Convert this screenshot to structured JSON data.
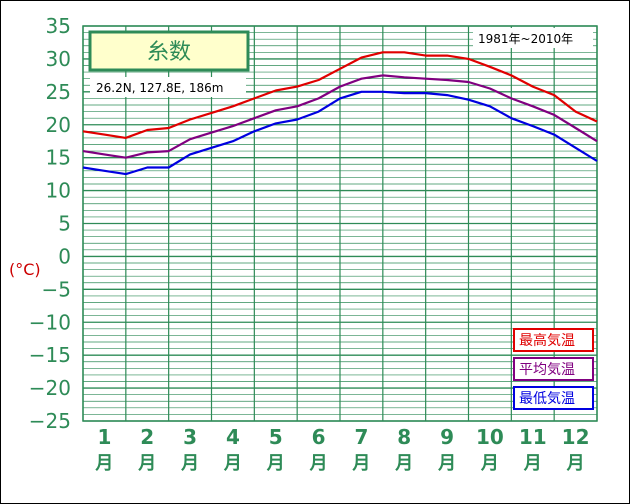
{
  "chart_data": {
    "type": "line",
    "title": "糸数",
    "location": "26.2N, 127.8E, 186m",
    "period": "1981年~2010年",
    "ylabel": "(°C)",
    "ylim": [
      -25,
      35
    ],
    "yticks": [
      35,
      30,
      25,
      20,
      15,
      10,
      5,
      0,
      -5,
      -10,
      -15,
      -20,
      -25
    ],
    "xlim": [
      0,
      12
    ],
    "month_numbers": [
      "1",
      "2",
      "3",
      "4",
      "5",
      "6",
      "7",
      "8",
      "9",
      "10",
      "11",
      "12"
    ],
    "month_suffix": "月",
    "grid": true,
    "legend_position": "bottom-right",
    "x": [
      0.0,
      0.5,
      1.0,
      1.5,
      2.0,
      2.5,
      3.0,
      3.5,
      4.0,
      4.5,
      5.0,
      5.5,
      6.0,
      6.5,
      7.0,
      7.5,
      8.0,
      8.5,
      9.0,
      9.5,
      10.0,
      10.5,
      11.0,
      11.5,
      12.0
    ],
    "series": [
      {
        "name": "最高気温",
        "color": "#e00000",
        "values": [
          19.0,
          18.5,
          18.0,
          19.2,
          19.5,
          20.8,
          21.8,
          22.8,
          24.0,
          25.2,
          25.8,
          26.8,
          28.5,
          30.2,
          31.0,
          31.0,
          30.5,
          30.5,
          30.0,
          28.8,
          27.5,
          25.8,
          24.5,
          22.0,
          20.5
        ]
      },
      {
        "name": "平均気温",
        "color": "#800080",
        "values": [
          16.0,
          15.5,
          15.0,
          15.8,
          16.0,
          17.8,
          18.8,
          19.8,
          21.0,
          22.2,
          22.8,
          24.0,
          25.8,
          27.0,
          27.5,
          27.2,
          27.0,
          26.8,
          26.5,
          25.5,
          24.0,
          22.8,
          21.5,
          19.5,
          17.5
        ]
      },
      {
        "name": "最低気温",
        "color": "#0000e0",
        "values": [
          13.5,
          13.0,
          12.5,
          13.5,
          13.5,
          15.5,
          16.5,
          17.5,
          19.0,
          20.2,
          20.8,
          22.0,
          24.0,
          25.0,
          25.0,
          24.8,
          24.8,
          24.5,
          23.8,
          22.8,
          21.0,
          19.8,
          18.5,
          16.5,
          14.5
        ]
      }
    ]
  }
}
